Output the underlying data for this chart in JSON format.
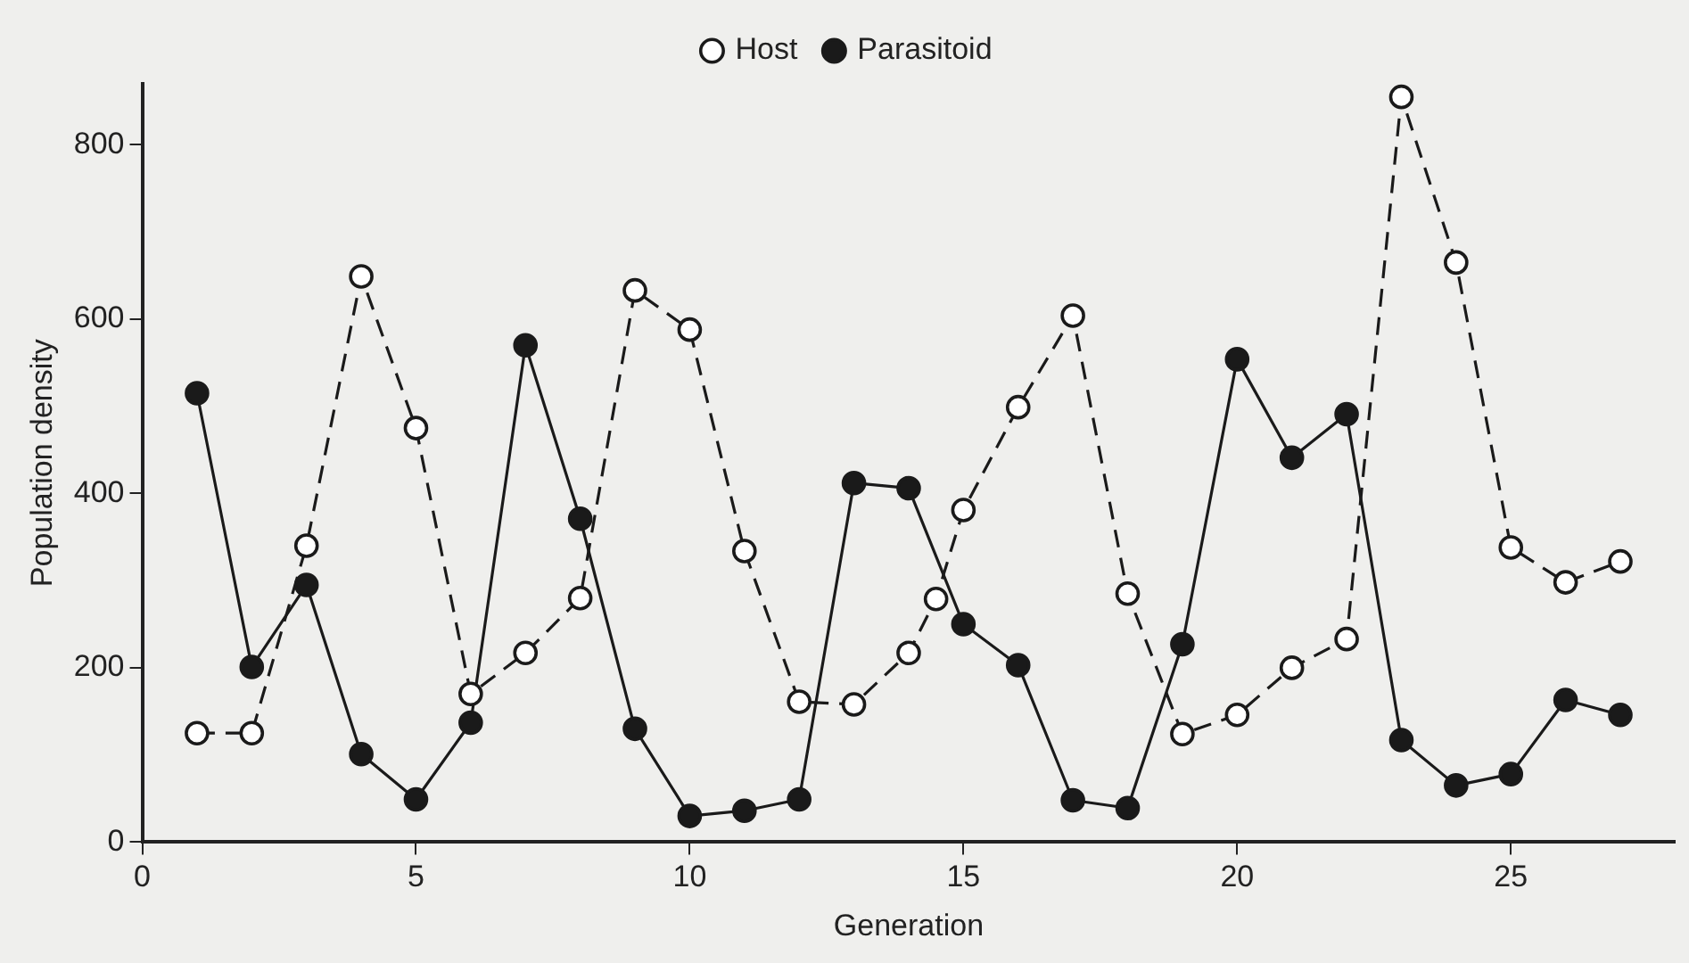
{
  "chart_data": {
    "type": "line",
    "xlabel": "Generation",
    "ylabel": "Population density",
    "xlim": [
      0,
      28
    ],
    "xticks": [
      0,
      5,
      10,
      15,
      20,
      25
    ],
    "ylim": [
      0,
      870
    ],
    "yticks": [
      0,
      200,
      400,
      600,
      800
    ],
    "grid": false,
    "legend": "top",
    "marker": "circle",
    "series": [
      {
        "name": "Host",
        "color": "#1a1a1a",
        "line_style": "dashed",
        "x": [
          1,
          2,
          3,
          4,
          5,
          6,
          7,
          8,
          9,
          10,
          11,
          12,
          13,
          14,
          14.5,
          15,
          16,
          17,
          18,
          19,
          20,
          21,
          22,
          23,
          24,
          25,
          26,
          27
        ],
        "values": [
          125,
          125,
          340,
          649,
          475,
          170,
          217,
          280,
          633,
          588,
          334,
          161,
          158,
          217,
          279,
          381,
          499,
          604,
          285,
          124,
          146,
          200,
          233,
          855,
          665,
          338,
          298,
          322
        ]
      },
      {
        "name": "Parasitoid",
        "color": "#1a1a1a",
        "line_style": "solid",
        "x": [
          1,
          2,
          3,
          4,
          5,
          6,
          7,
          8,
          9,
          10,
          11,
          12,
          13,
          14,
          15,
          16,
          17,
          18,
          19,
          20,
          21,
          22,
          23,
          24,
          25,
          26,
          27
        ],
        "values": [
          515,
          201,
          295,
          101,
          49,
          137,
          570,
          371,
          130,
          30,
          36,
          49,
          412,
          406,
          250,
          203,
          48,
          39,
          227,
          554,
          441,
          491,
          117,
          65,
          78,
          163,
          146
        ]
      }
    ]
  }
}
